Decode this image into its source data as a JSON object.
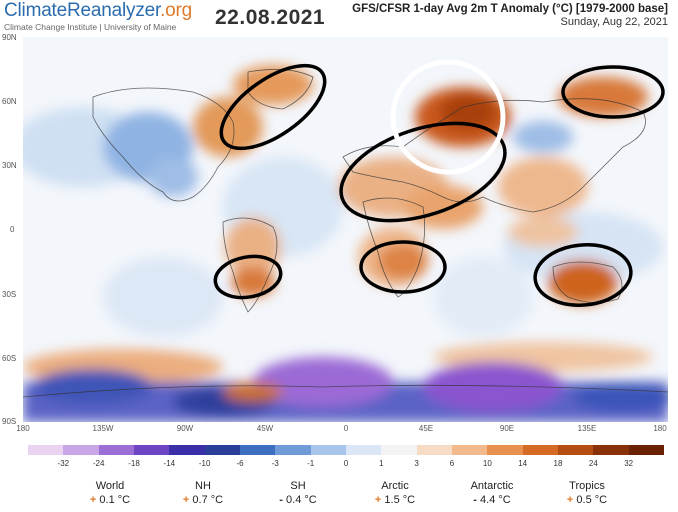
{
  "header": {
    "brand_name_main": "ClimateReanalyzer",
    "brand_name_tld": ".org",
    "brand_subtitle": "Climate Change Institute | University of Maine",
    "date": "22.08.2021",
    "model_title": "GFS/CFSR 1-day Avg 2m T Anomaly (°C) [1979-2000 base]",
    "date_subtitle": "Sunday, Aug 22, 2021"
  },
  "map": {
    "lat_labels": [
      "90N",
      "60N",
      "30N",
      "0",
      "30S",
      "60S",
      "90S"
    ],
    "lon_labels": [
      "180",
      "135W",
      "90W",
      "45W",
      "0",
      "45E",
      "90E",
      "135E",
      "180"
    ]
  },
  "colorbar": {
    "ticks": [
      "-32",
      "-24",
      "-18",
      "-14",
      "-10",
      "-6",
      "-3",
      "-1",
      "0",
      "1",
      "3",
      "6",
      "10",
      "14",
      "18",
      "24",
      "32"
    ],
    "colors": [
      "#e9d3f0",
      "#c9a6e6",
      "#9c6fd6",
      "#6e46c4",
      "#3a2fa8",
      "#2b3f9a",
      "#3d6fc0",
      "#6f9bd8",
      "#a8c6ec",
      "#dbe7f6",
      "#f4f4f4",
      "#f7dcc5",
      "#f2b98c",
      "#e8904f",
      "#d46a24",
      "#b34d12",
      "#8a3207",
      "#6b2204"
    ]
  },
  "stats": [
    {
      "name": "World",
      "sign": "+",
      "value": "0.1 °C"
    },
    {
      "name": "NH",
      "sign": "+",
      "value": "0.7 °C"
    },
    {
      "name": "SH",
      "sign": "-",
      "value": "0.4 °C"
    },
    {
      "name": "Arctic",
      "sign": "+",
      "value": "1.5 °C"
    },
    {
      "name": "Antarctic",
      "sign": "-",
      "value": "4.4 °C"
    },
    {
      "name": "Tropics",
      "sign": "+",
      "value": "0.5 °C"
    }
  ]
}
